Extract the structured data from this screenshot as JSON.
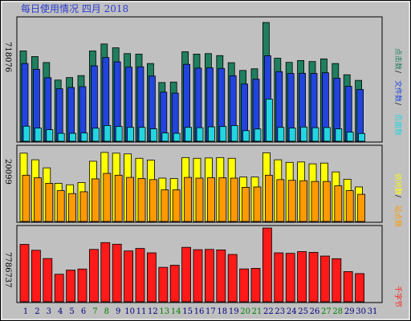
{
  "title": "每日使用情况 四月 2018",
  "colors": {
    "visits": "#1f7f5f",
    "pages": "#2244dd",
    "hits": "#22d5e0",
    "files": "#ffff00",
    "sites": "#ff9a00",
    "kbytes": "#ff1a1a",
    "weekend_day": "#008000",
    "weekday_day": "#000080"
  },
  "chart_data": [
    {
      "type": "bar",
      "panel": "top",
      "ymax_label": "718076",
      "ymax": 718076,
      "categories": [
        "1",
        "2",
        "3",
        "4",
        "5",
        "6",
        "7",
        "8",
        "9",
        "10",
        "11",
        "12",
        "13",
        "14",
        "15",
        "16",
        "17",
        "18",
        "19",
        "20",
        "21",
        "22",
        "23",
        "24",
        "25",
        "26",
        "27",
        "28",
        "29",
        "30",
        "31"
      ],
      "series": [
        {
          "name": "点击数",
          "values": [
            546000,
            512000,
            476000,
            370000,
            385000,
            397000,
            546000,
            588000,
            565000,
            530000,
            527000,
            470000,
            355000,
            358000,
            541000,
            527000,
            530000,
            518000,
            475000,
            428000,
            438000,
            718000,
            502000,
            477000,
            488000,
            482000,
            498000,
            470000,
            402000,
            368000,
            0
          ]
        },
        {
          "name": "文件数",
          "values": [
            470000,
            435000,
            384000,
            317000,
            325000,
            330000,
            456000,
            506000,
            480000,
            448000,
            450000,
            394000,
            297000,
            291000,
            465000,
            442000,
            444000,
            440000,
            396000,
            346000,
            375000,
            517000,
            421000,
            410000,
            411000,
            410000,
            414000,
            381000,
            332000,
            313000,
            0
          ]
        },
        {
          "name": "页面数",
          "values": [
            91000,
            80000,
            70000,
            48000,
            48000,
            50000,
            79000,
            95000,
            89000,
            84000,
            84000,
            75000,
            50000,
            48000,
            84000,
            82000,
            87000,
            89000,
            95000,
            64000,
            74000,
            255000,
            84000,
            80000,
            86000,
            82000,
            83000,
            75000,
            55000,
            47000,
            0
          ]
        }
      ]
    },
    {
      "type": "bar",
      "panel": "middle",
      "ymax_label": "20099",
      "ymax": 20099,
      "categories": [
        "1",
        "2",
        "3",
        "4",
        "5",
        "6",
        "7",
        "8",
        "9",
        "10",
        "11",
        "12",
        "13",
        "14",
        "15",
        "16",
        "17",
        "18",
        "19",
        "20",
        "21",
        "22",
        "23",
        "24",
        "25",
        "26",
        "27",
        "28",
        "29",
        "30",
        "31"
      ],
      "series": [
        {
          "name": "访问数",
          "values": [
            18600,
            16800,
            14600,
            10400,
            10000,
            10600,
            16400,
            18800,
            18600,
            18400,
            17200,
            16700,
            11800,
            11700,
            17400,
            17200,
            17300,
            17400,
            17200,
            12100,
            12100,
            18700,
            16800,
            16100,
            16200,
            15700,
            15900,
            13500,
            11500,
            9400,
            0
          ]
        },
        {
          "name": "站点数",
          "values": [
            12600,
            11900,
            10400,
            8400,
            7600,
            8100,
            11600,
            13100,
            12600,
            12000,
            11700,
            11400,
            8600,
            8600,
            12000,
            11800,
            11900,
            11900,
            11800,
            9300,
            9400,
            12600,
            11400,
            11200,
            11100,
            10900,
            10900,
            9700,
            8400,
            7400,
            0
          ]
        }
      ]
    },
    {
      "type": "bar",
      "panel": "bottom",
      "ymax_label": "7786737",
      "ymax": 7786737,
      "categories": [
        "1",
        "2",
        "3",
        "4",
        "5",
        "6",
        "7",
        "8",
        "9",
        "10",
        "11",
        "12",
        "13",
        "14",
        "15",
        "16",
        "17",
        "18",
        "19",
        "20",
        "21",
        "22",
        "23",
        "24",
        "25",
        "26",
        "27",
        "28",
        "29",
        "30",
        "31"
      ],
      "series": [
        {
          "name": "千字节",
          "values": [
            6050000,
            5430000,
            4560000,
            2900000,
            3340000,
            3450000,
            5520000,
            6240000,
            6070000,
            5360000,
            5620000,
            5160000,
            3630000,
            3850000,
            5740000,
            5490000,
            5520000,
            5470000,
            4990000,
            3460000,
            3520000,
            7780000,
            5160000,
            5110000,
            5290000,
            5210000,
            4820000,
            4540000,
            3180000,
            2970000,
            0
          ]
        }
      ]
    }
  ],
  "days": {
    "labels": [
      "1",
      "2",
      "3",
      "4",
      "5",
      "6",
      "7",
      "8",
      "9",
      "10",
      "11",
      "12",
      "13",
      "14",
      "15",
      "16",
      "17",
      "18",
      "19",
      "20",
      "21",
      "22",
      "23",
      "24",
      "25",
      "26",
      "27",
      "28",
      "29",
      "30",
      "31"
    ],
    "weekend": [
      false,
      false,
      false,
      false,
      false,
      false,
      true,
      true,
      false,
      false,
      false,
      false,
      true,
      true,
      false,
      false,
      false,
      false,
      false,
      true,
      true,
      false,
      false,
      false,
      false,
      false,
      true,
      true,
      false,
      false,
      false
    ]
  },
  "legends": {
    "visits": "点击数",
    "slash1": "/",
    "files": "文件数",
    "slash2": "/",
    "pages": "页面数",
    "kbytes": "千字节",
    "m_visits": "访问数",
    "m_slash": "/",
    "m_sites": "站点数"
  }
}
